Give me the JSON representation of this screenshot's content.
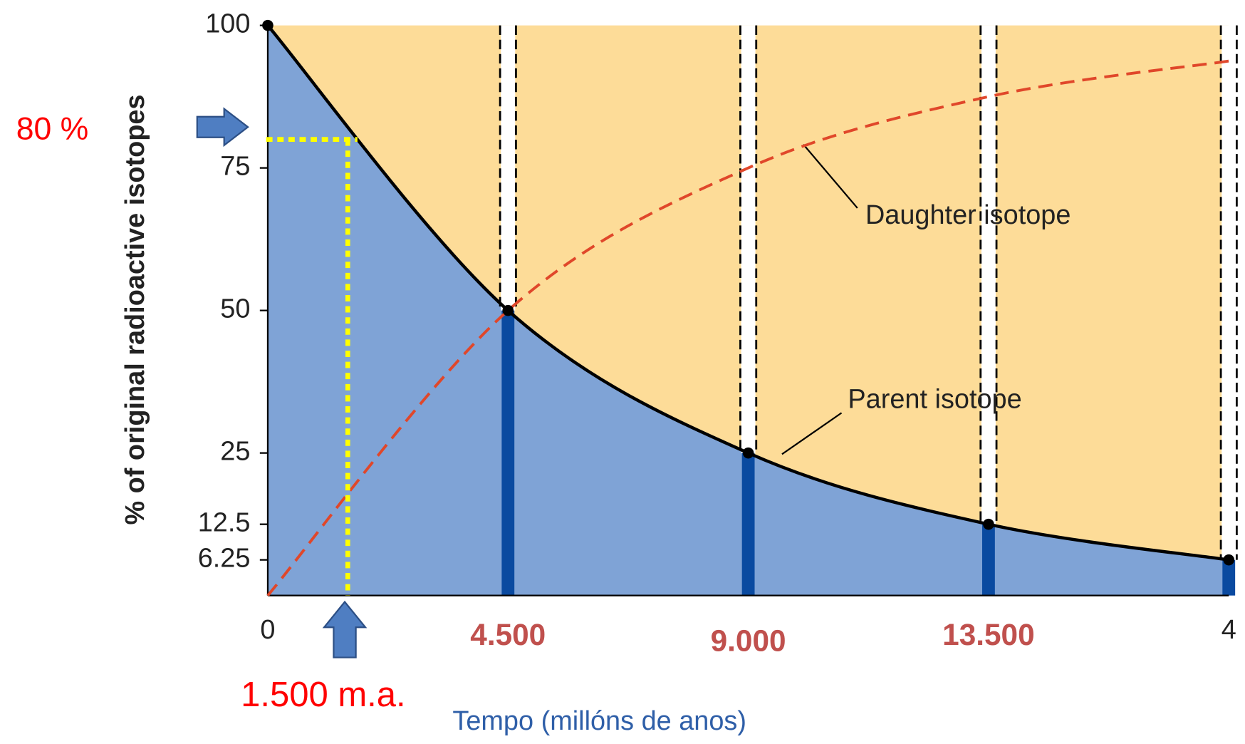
{
  "chart_data": {
    "type": "line",
    "y_label": "% of original radioactive isotopes",
    "x_label": "Tempo (millóns de anos)",
    "x": [
      0,
      1,
      2,
      3,
      4
    ],
    "series": [
      {
        "name": "Parent isotope",
        "color": "#000000",
        "values": [
          100,
          50,
          25,
          12.5,
          6.25
        ]
      },
      {
        "name": "Daughter isotope",
        "color": "#e0472a",
        "values": [
          0,
          50,
          75,
          87.5,
          93.75
        ]
      }
    ],
    "xlim": [
      0,
      4
    ],
    "ylim": [
      0,
      100
    ],
    "xticks": [
      0,
      4
    ],
    "yticks": [
      100,
      75,
      50,
      25,
      12.5,
      6.25
    ],
    "time_labels": [
      {
        "x": 1,
        "label": "4.500"
      },
      {
        "x": 2,
        "label": "9.000"
      },
      {
        "x": 3,
        "label": "13.500"
      }
    ],
    "reading": {
      "x": 0.333,
      "y": 80,
      "x_label": "1.500 m.a.",
      "y_label": "80 %"
    },
    "parent_fill": "#7fa3d6",
    "daughter_fill": "#fddc98",
    "bar_color": "#0a4aa0"
  }
}
